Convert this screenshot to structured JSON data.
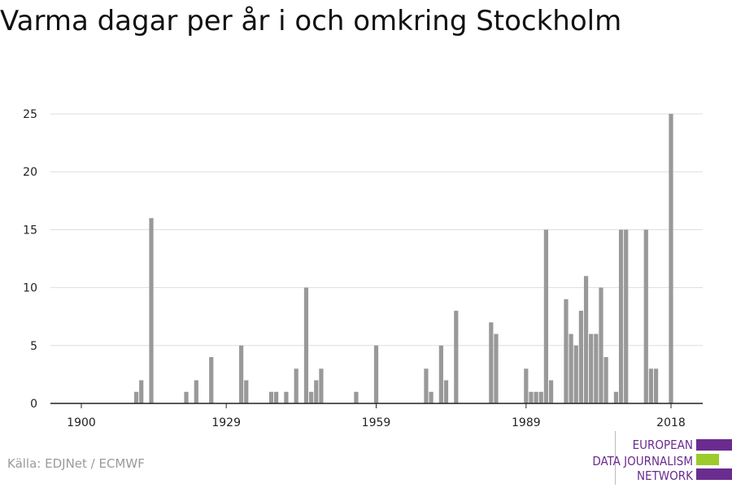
{
  "title": "Varma dagar per år i och omkring Stockholm",
  "source": "Källa: EDJNet / ECMWF",
  "logo": {
    "line1": "EUROPEAN",
    "line2": "DATA JOURNALISM",
    "line3": "NETWORK",
    "colors": {
      "text": "#6a2c8e",
      "bar_purple": "#6a2c8e",
      "bar_green": "#9ccc2b"
    }
  },
  "chart_data": {
    "type": "bar",
    "title": "Varma dagar per år i och omkring Stockholm",
    "xlabel": "",
    "ylabel": "",
    "x_range": [
      1900,
      2018
    ],
    "ylim": [
      0,
      25
    ],
    "y_ticks": [
      0,
      5,
      10,
      15,
      20,
      25
    ],
    "x_ticks": [
      1900,
      1929,
      1959,
      1989,
      2018
    ],
    "grid": "horizontal",
    "bar_color": "#999999",
    "x": [
      1911,
      1912,
      1914,
      1921,
      1923,
      1926,
      1932,
      1933,
      1938,
      1939,
      1941,
      1943,
      1945,
      1946,
      1947,
      1948,
      1955,
      1959,
      1969,
      1970,
      1972,
      1973,
      1975,
      1982,
      1983,
      1989,
      1990,
      1991,
      1992,
      1993,
      1994,
      1997,
      1998,
      1999,
      2000,
      2001,
      2002,
      2003,
      2004,
      2005,
      2007,
      2008,
      2009,
      2013,
      2014,
      2015,
      2018
    ],
    "values": [
      1,
      2,
      16,
      1,
      2,
      4,
      5,
      2,
      1,
      1,
      1,
      3,
      10,
      1,
      2,
      3,
      1,
      5,
      3,
      1,
      5,
      2,
      8,
      7,
      6,
      3,
      1,
      1,
      1,
      15,
      2,
      9,
      6,
      5,
      8,
      11,
      6,
      6,
      10,
      4,
      1,
      15,
      15,
      15,
      3,
      3,
      25
    ]
  }
}
